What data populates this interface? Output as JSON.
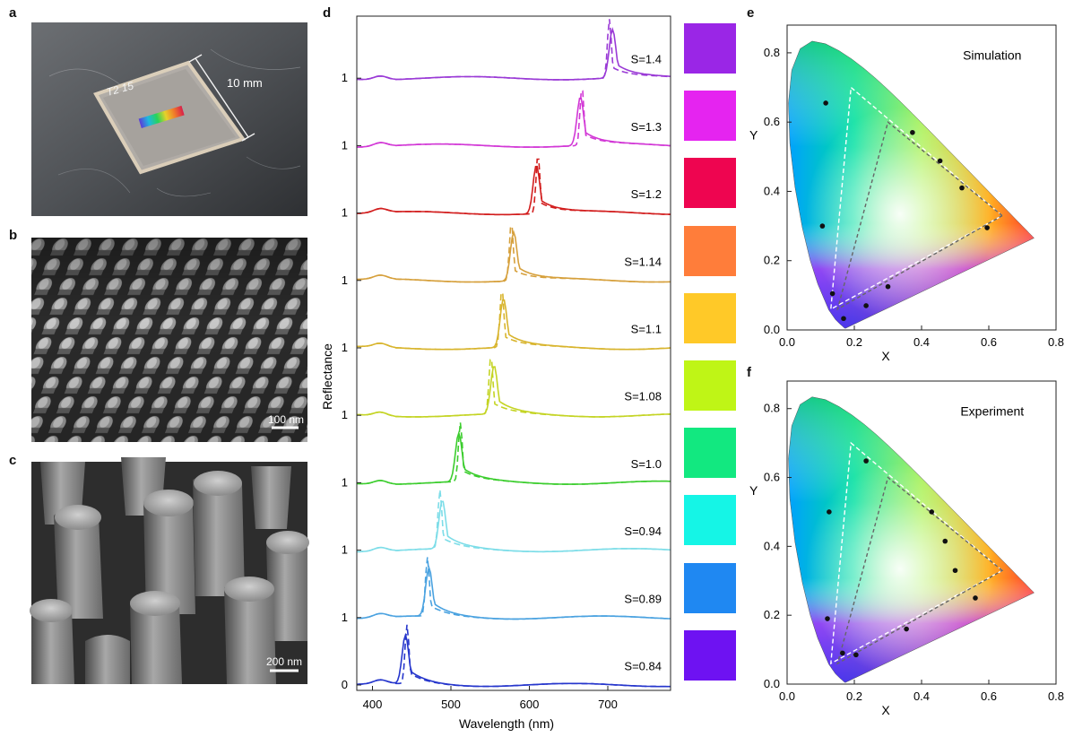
{
  "panels": {
    "a": "a",
    "b": "b",
    "c": "c",
    "d": "d",
    "e": "e",
    "f": "f"
  },
  "photo_a": {
    "scale_text": "10 mm",
    "chip_text": "T2 15"
  },
  "sem_b": {
    "scale_text": "100 nm"
  },
  "sem_c": {
    "scale_text": "200 nm"
  },
  "chart_data": [
    {
      "type": "line",
      "panel": "d",
      "xlabel": "Wavelength (nm)",
      "ylabel": "Reflectance",
      "xlim": [
        380,
        780
      ],
      "xticks": [
        400,
        500,
        600,
        700
      ],
      "legend": "none",
      "notes_style": "solid = one set, dashed = second set (not labeled in figure)",
      "series": [
        {
          "label": "S=1.4",
          "tick": "1",
          "color": "#9a3ad6",
          "swatch": "#9a26e6",
          "peak_solid": 706,
          "peak_dashed": 702
        },
        {
          "label": "S=1.3",
          "tick": "1",
          "color": "#d238d6",
          "swatch": "#e524f0",
          "peak_solid": 665,
          "peak_dashed": 667
        },
        {
          "label": "S=1.2",
          "tick": "1",
          "color": "#d21e1e",
          "swatch": "#ee0550",
          "peak_solid": 609,
          "peak_dashed": 611
        },
        {
          "label": "S=1.14",
          "tick": "1",
          "color": "#d6a03c",
          "swatch": "#ff7d3a",
          "peak_solid": 580,
          "peak_dashed": 577
        },
        {
          "label": "S=1.1",
          "tick": "1",
          "color": "#d8b42c",
          "swatch": "#ffc928",
          "peak_solid": 567,
          "peak_dashed": 565
        },
        {
          "label": "S=1.08",
          "tick": "1",
          "color": "#c4d424",
          "swatch": "#bff516",
          "peak_solid": 555,
          "peak_dashed": 551
        },
        {
          "label": "S=1.0",
          "tick": "1",
          "color": "#3ccd2e",
          "swatch": "#12e880",
          "peak_solid": 510,
          "peak_dashed": 512
        },
        {
          "label": "S=0.94",
          "tick": "1",
          "color": "#7ddde8",
          "swatch": "#15f5e6",
          "peak_solid": 489,
          "peak_dashed": 486
        },
        {
          "label": "S=0.89",
          "tick": "1",
          "color": "#4aa2e0",
          "swatch": "#1f88f2",
          "peak_solid": 472,
          "peak_dashed": 470
        },
        {
          "label": "S=0.84",
          "tick": "0",
          "color": "#2636cc",
          "swatch": "#6e12f2",
          "peak_solid": 442,
          "peak_dashed": 444
        }
      ]
    },
    {
      "type": "scatter",
      "panel": "e",
      "title": "Simulation",
      "xlabel": "X",
      "ylabel": "Y",
      "xlim": [
        0,
        0.8
      ],
      "ylim": [
        0,
        0.88
      ],
      "xticks": [
        "0.0",
        "0.2",
        "0.4",
        "0.6",
        "0.8"
      ],
      "yticks": [
        "0.0",
        "0.2",
        "0.4",
        "0.6",
        "0.8"
      ],
      "points": [
        [
          0.115,
          0.655
        ],
        [
          0.373,
          0.57
        ],
        [
          0.455,
          0.488
        ],
        [
          0.52,
          0.41
        ],
        [
          0.595,
          0.295
        ],
        [
          0.105,
          0.3
        ],
        [
          0.135,
          0.105
        ],
        [
          0.3,
          0.125
        ],
        [
          0.235,
          0.07
        ],
        [
          0.168,
          0.033
        ]
      ],
      "triangle_outer": [
        [
          0.64,
          0.33
        ],
        [
          0.19,
          0.7
        ],
        [
          0.13,
          0.06
        ]
      ],
      "triangle_inner": [
        [
          0.64,
          0.33
        ],
        [
          0.3,
          0.6
        ],
        [
          0.15,
          0.06
        ]
      ]
    },
    {
      "type": "scatter",
      "panel": "f",
      "title": "Experiment",
      "xlabel": "X",
      "ylabel": "Y",
      "xlim": [
        0,
        0.8
      ],
      "ylim": [
        0,
        0.88
      ],
      "xticks": [
        "0.0",
        "0.2",
        "0.4",
        "0.6",
        "0.8"
      ],
      "yticks": [
        "0.0",
        "0.2",
        "0.4",
        "0.6",
        "0.8"
      ],
      "points": [
        [
          0.235,
          0.648
        ],
        [
          0.125,
          0.5
        ],
        [
          0.43,
          0.5
        ],
        [
          0.47,
          0.415
        ],
        [
          0.5,
          0.33
        ],
        [
          0.56,
          0.25
        ],
        [
          0.12,
          0.19
        ],
        [
          0.355,
          0.16
        ],
        [
          0.165,
          0.09
        ],
        [
          0.205,
          0.085
        ]
      ],
      "triangle_outer": [
        [
          0.64,
          0.33
        ],
        [
          0.19,
          0.7
        ],
        [
          0.13,
          0.06
        ]
      ],
      "triangle_inner": [
        [
          0.64,
          0.33
        ],
        [
          0.3,
          0.6
        ],
        [
          0.15,
          0.06
        ]
      ]
    }
  ]
}
